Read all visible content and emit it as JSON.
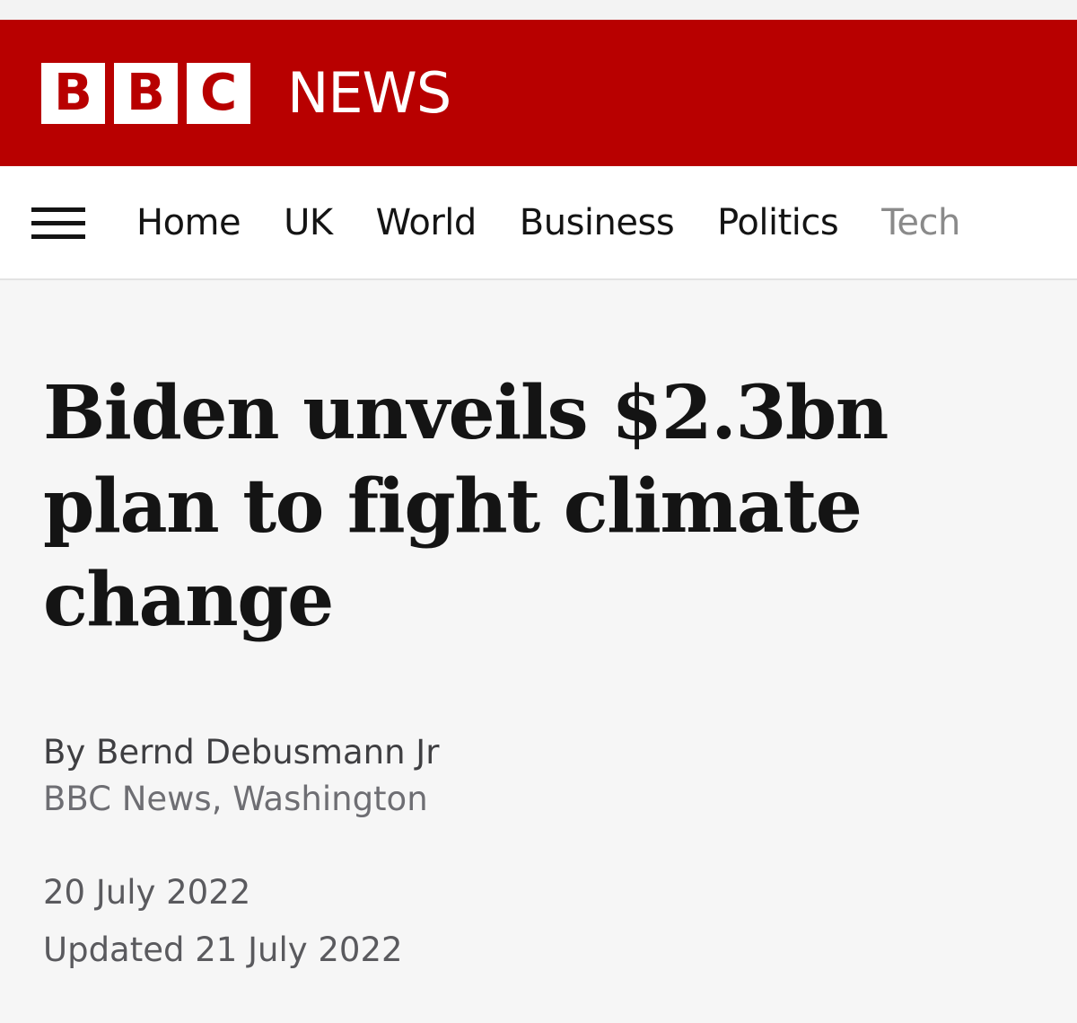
{
  "masthead": {
    "logo_letters": [
      "B",
      "B",
      "C"
    ],
    "section_word": "NEWS",
    "brand_color": "#b80000"
  },
  "nav": {
    "menu_icon": "hamburger-menu-icon",
    "items": [
      {
        "label": "Home"
      },
      {
        "label": "UK"
      },
      {
        "label": "World"
      },
      {
        "label": "Business"
      },
      {
        "label": "Politics"
      },
      {
        "label": "Tech"
      }
    ]
  },
  "article": {
    "headline": "Biden unveils $2.3bn plan to fight climate change",
    "byline": {
      "author": "By Bernd Debusmann Jr",
      "role": "BBC News, Washington"
    },
    "published": "20 July 2022",
    "updated": "Updated 21 July 2022"
  }
}
